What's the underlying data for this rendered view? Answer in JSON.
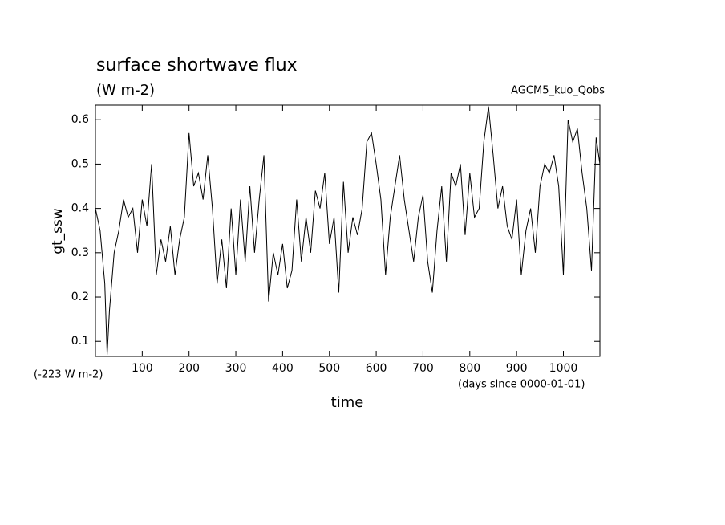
{
  "chart_data": {
    "type": "line",
    "title": "surface shortwave flux",
    "subtitle": "(W m-2)",
    "annotation": "AGCM5_kuo_Qobs",
    "ylabel": "gt_ssw",
    "xlabel": "time",
    "offset_note": "(-223 W m-2)",
    "x_units": "(days since 0000-01-01)",
    "color": "#000000",
    "x": [
      0,
      10,
      20,
      25,
      30,
      40,
      50,
      60,
      70,
      80,
      90,
      100,
      110,
      120,
      130,
      140,
      150,
      160,
      170,
      180,
      190,
      200,
      210,
      220,
      230,
      240,
      250,
      260,
      270,
      280,
      290,
      300,
      310,
      320,
      330,
      340,
      350,
      360,
      370,
      380,
      390,
      400,
      410,
      420,
      430,
      440,
      450,
      460,
      470,
      480,
      490,
      500,
      510,
      520,
      530,
      540,
      550,
      560,
      570,
      580,
      590,
      600,
      610,
      620,
      630,
      640,
      650,
      660,
      670,
      680,
      690,
      700,
      710,
      720,
      730,
      740,
      750,
      760,
      770,
      780,
      790,
      800,
      810,
      820,
      830,
      840,
      850,
      860,
      870,
      880,
      890,
      900,
      910,
      920,
      930,
      940,
      950,
      960,
      970,
      980,
      990,
      1000,
      1010,
      1020,
      1030,
      1040,
      1050,
      1060,
      1070,
      1078
    ],
    "values": [
      0.4,
      0.35,
      0.23,
      0.07,
      0.17,
      0.3,
      0.35,
      0.42,
      0.38,
      0.4,
      0.3,
      0.42,
      0.36,
      0.5,
      0.25,
      0.33,
      0.28,
      0.36,
      0.25,
      0.33,
      0.38,
      0.57,
      0.45,
      0.48,
      0.42,
      0.52,
      0.4,
      0.23,
      0.33,
      0.22,
      0.4,
      0.25,
      0.42,
      0.28,
      0.45,
      0.3,
      0.42,
      0.52,
      0.19,
      0.3,
      0.25,
      0.32,
      0.22,
      0.26,
      0.42,
      0.28,
      0.38,
      0.3,
      0.44,
      0.4,
      0.48,
      0.32,
      0.38,
      0.21,
      0.46,
      0.3,
      0.38,
      0.34,
      0.4,
      0.55,
      0.57,
      0.5,
      0.42,
      0.25,
      0.38,
      0.45,
      0.52,
      0.42,
      0.35,
      0.28,
      0.38,
      0.43,
      0.28,
      0.21,
      0.35,
      0.45,
      0.28,
      0.48,
      0.45,
      0.5,
      0.34,
      0.48,
      0.38,
      0.4,
      0.55,
      0.63,
      0.52,
      0.4,
      0.45,
      0.36,
      0.33,
      0.42,
      0.25,
      0.35,
      0.4,
      0.3,
      0.45,
      0.5,
      0.48,
      0.52,
      0.45,
      0.25,
      0.6,
      0.55,
      0.58,
      0.48,
      0.4,
      0.26,
      0.56,
      0.5
    ],
    "xlim": [
      0,
      1078
    ],
    "xticks": [
      100,
      200,
      300,
      400,
      500,
      600,
      700,
      800,
      900,
      1000
    ],
    "ylim": [
      0.066,
      0.633
    ],
    "yticks": [
      0.1,
      0.2,
      0.3,
      0.4,
      0.5,
      0.6
    ]
  }
}
